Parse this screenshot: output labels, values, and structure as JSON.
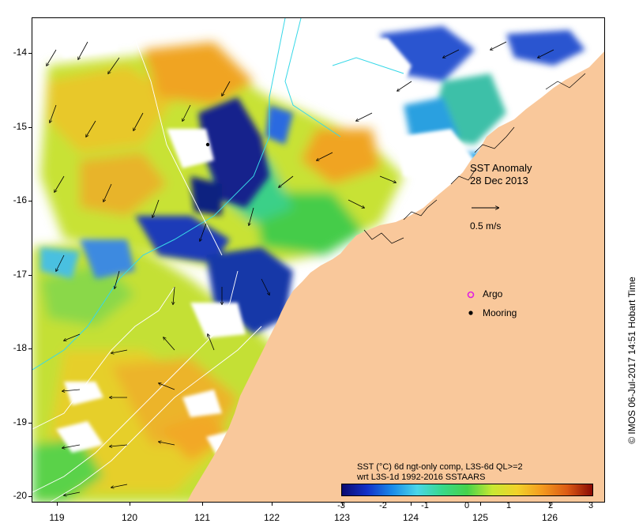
{
  "map": {
    "title": "SST Anomaly",
    "date": "28 Dec 2013",
    "scale_vector_label": "0.5 m/s",
    "legend": {
      "argo_label": "Argo",
      "mooring_label": "Mooring"
    },
    "caption_line1": "SST (°C) 6d ngt-only comp, L3S-6d QL>=2",
    "caption_line2": "wrt L3S-1d 1992-2016 SSTAARS",
    "credit": "© IMOS 06-Jul-2017 14:51 Hobart Time",
    "longitude_labels": [
      "119",
      "120",
      "121",
      "122",
      "123",
      "124",
      "125",
      "126"
    ],
    "latitude_labels": [
      "-14",
      "-15",
      "-16",
      "-17",
      "-18",
      "-19",
      "-20"
    ],
    "colorbar": {
      "ticks": [
        "-3",
        "-2",
        "-1",
        "0",
        "1",
        "2",
        "3"
      ],
      "min": -3,
      "max": 3
    },
    "colors": {
      "land": "#f9c89b",
      "background": "#ffffff",
      "argo": "#e020e0",
      "mooring": "#000000",
      "bathymetry": "#38d8e8",
      "contour": "#ffffff"
    }
  }
}
